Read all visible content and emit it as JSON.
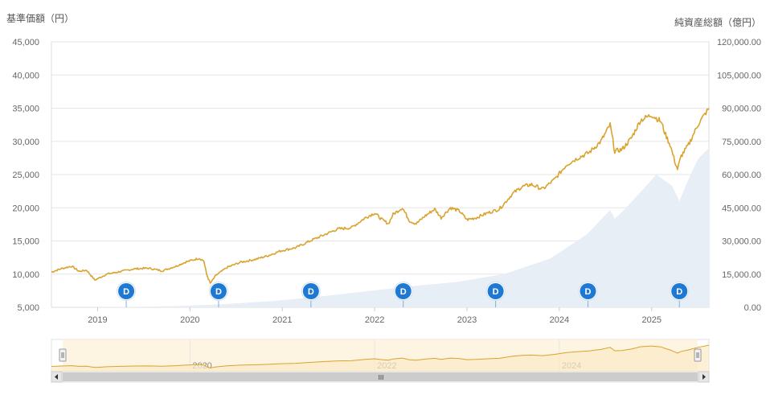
{
  "chart_data": {
    "type": "line",
    "left_axis_title": "基準価額（円）",
    "right_axis_title": "純資産総額（億円）",
    "left_ticks": [
      "5,000",
      "10,000",
      "15,000",
      "20,000",
      "25,000",
      "30,000",
      "35,000",
      "40,000",
      "45,000"
    ],
    "right_ticks": [
      "0.00",
      "15,000.00",
      "30,000.00",
      "45,000.00",
      "60,000.00",
      "75,000.00",
      "90,000.00",
      "105,000.00",
      "120,000.00"
    ],
    "x_ticks": [
      "2019",
      "2020",
      "2021",
      "2022",
      "2023",
      "2024",
      "2025"
    ],
    "ylim_left": [
      5000,
      45000
    ],
    "ylim_right": [
      0,
      120000
    ],
    "xlim": [
      2018.5,
      2025.62
    ],
    "grid": true,
    "colors": {
      "nav_line": "#D9A32E",
      "assets_area": "#E8EEF6",
      "dividend_marker": "#1F78D1"
    },
    "series": [
      {
        "axis": "left",
        "style": "line",
        "points": [
          [
            2018.5,
            10300
          ],
          [
            2018.6,
            10800
          ],
          [
            2018.72,
            11200
          ],
          [
            2018.8,
            10400
          ],
          [
            2018.88,
            10600
          ],
          [
            2018.97,
            9100
          ],
          [
            2019.1,
            10000
          ],
          [
            2019.25,
            10400
          ],
          [
            2019.4,
            10800
          ],
          [
            2019.55,
            10900
          ],
          [
            2019.7,
            10500
          ],
          [
            2019.85,
            11200
          ],
          [
            2019.95,
            11800
          ],
          [
            2020.1,
            12400
          ],
          [
            2020.15,
            12000
          ],
          [
            2020.18,
            10000
          ],
          [
            2020.22,
            8600
          ],
          [
            2020.28,
            9800
          ],
          [
            2020.4,
            11000
          ],
          [
            2020.55,
            11800
          ],
          [
            2020.7,
            12200
          ],
          [
            2020.85,
            12800
          ],
          [
            2020.98,
            13500
          ],
          [
            2021.15,
            14000
          ],
          [
            2021.3,
            15000
          ],
          [
            2021.45,
            15900
          ],
          [
            2021.6,
            16800
          ],
          [
            2021.75,
            17000
          ],
          [
            2021.9,
            18500
          ],
          [
            2022.0,
            19200
          ],
          [
            2022.08,
            18200
          ],
          [
            2022.15,
            17600
          ],
          [
            2022.2,
            19000
          ],
          [
            2022.3,
            20000
          ],
          [
            2022.38,
            18000
          ],
          [
            2022.45,
            17600
          ],
          [
            2022.55,
            18800
          ],
          [
            2022.65,
            19800
          ],
          [
            2022.72,
            18500
          ],
          [
            2022.82,
            20000
          ],
          [
            2022.92,
            19500
          ],
          [
            2023.0,
            18200
          ],
          [
            2023.1,
            18500
          ],
          [
            2023.22,
            19200
          ],
          [
            2023.35,
            19800
          ],
          [
            2023.5,
            22200
          ],
          [
            2023.6,
            23200
          ],
          [
            2023.7,
            23500
          ],
          [
            2023.82,
            22800
          ],
          [
            2023.95,
            24300
          ],
          [
            2024.08,
            26500
          ],
          [
            2024.2,
            27500
          ],
          [
            2024.32,
            28300
          ],
          [
            2024.45,
            30000
          ],
          [
            2024.55,
            32500
          ],
          [
            2024.6,
            28500
          ],
          [
            2024.68,
            28800
          ],
          [
            2024.78,
            30500
          ],
          [
            2024.88,
            33200
          ],
          [
            2025.0,
            34000
          ],
          [
            2025.1,
            33000
          ],
          [
            2025.15,
            31000
          ],
          [
            2025.2,
            29500
          ],
          [
            2025.25,
            27000
          ],
          [
            2025.28,
            25800
          ],
          [
            2025.32,
            27800
          ],
          [
            2025.4,
            29500
          ],
          [
            2025.5,
            32500
          ],
          [
            2025.62,
            35000
          ]
        ]
      },
      {
        "axis": "right",
        "style": "area",
        "points": [
          [
            2018.5,
            0
          ],
          [
            2018.9,
            0
          ],
          [
            2019.4,
            200
          ],
          [
            2019.9,
            600
          ],
          [
            2020.4,
            1500
          ],
          [
            2020.9,
            2800
          ],
          [
            2021.4,
            4800
          ],
          [
            2021.9,
            7200
          ],
          [
            2022.4,
            9500
          ],
          [
            2022.9,
            11500
          ],
          [
            2023.4,
            15000
          ],
          [
            2023.9,
            22000
          ],
          [
            2024.3,
            33000
          ],
          [
            2024.55,
            44000
          ],
          [
            2024.6,
            40000
          ],
          [
            2024.7,
            44000
          ],
          [
            2024.9,
            53000
          ],
          [
            2025.05,
            60000
          ],
          [
            2025.22,
            55000
          ],
          [
            2025.3,
            48000
          ],
          [
            2025.4,
            58000
          ],
          [
            2025.5,
            67000
          ],
          [
            2025.62,
            72000
          ]
        ]
      }
    ],
    "markers": [
      {
        "label": "D",
        "x": 2019.31
      },
      {
        "label": "D",
        "x": 2020.31
      },
      {
        "label": "D",
        "x": 2021.31
      },
      {
        "label": "D",
        "x": 2022.31
      },
      {
        "label": "D",
        "x": 2023.31
      },
      {
        "label": "D",
        "x": 2024.31
      },
      {
        "label": "D",
        "x": 2025.3
      }
    ],
    "navigator": {
      "ticks": [
        "2020",
        "2022",
        "2024"
      ],
      "scroll_thumb": "III"
    }
  }
}
